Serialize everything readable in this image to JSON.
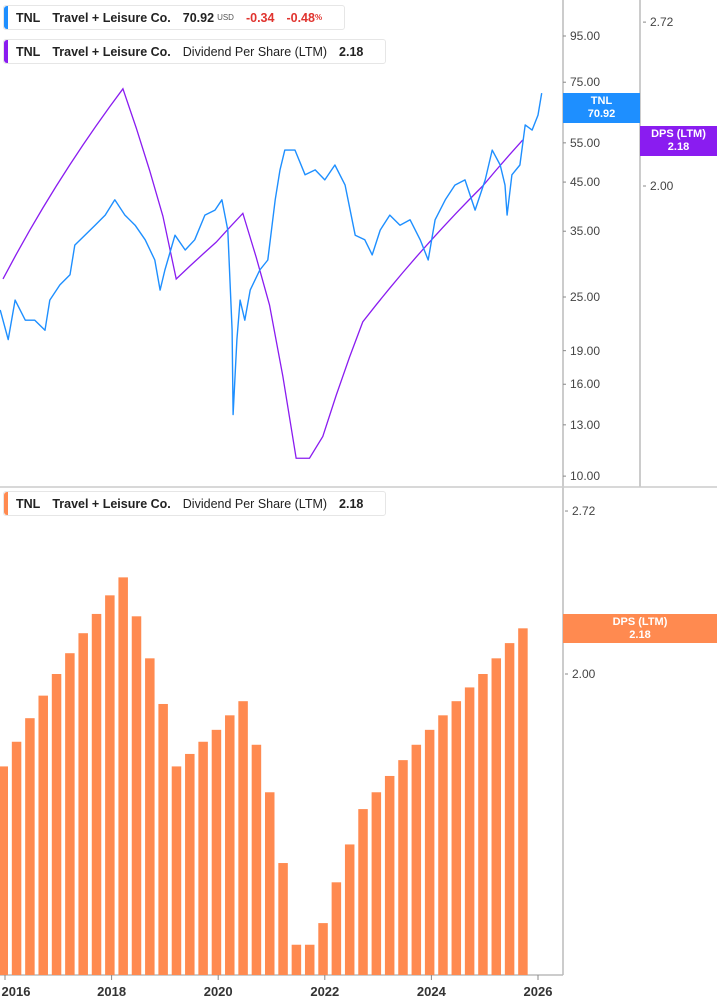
{
  "legend_price": {
    "ticker": "TNL",
    "company": "Travel + Leisure Co.",
    "price": "70.92",
    "currency": "USD",
    "change": "-0.34",
    "change_pct": "-0.48",
    "pct_sign": "%",
    "color": "#1e8fff"
  },
  "legend_dps_top": {
    "ticker": "TNL",
    "company": "Travel + Leisure Co.",
    "metric": "Dividend Per Share (LTM)",
    "value": "2.18",
    "color": "#8a1cf0"
  },
  "legend_dps_bottom": {
    "ticker": "TNL",
    "company": "Travel + Leisure Co.",
    "metric": "Dividend Per Share (LTM)",
    "value": "2.18",
    "color": "#ff8a50"
  },
  "tags": {
    "price": {
      "label": "TNL",
      "value": "70.92",
      "color": "#1e8fff"
    },
    "dps_top": {
      "label": "DPS (LTM)",
      "value": "2.18",
      "color": "#8a1cf0"
    },
    "dps_bottom": {
      "label": "DPS (LTM)",
      "value": "2.18",
      "color": "#ff8a50"
    }
  },
  "chart_data": [
    {
      "type": "line",
      "panel": "top",
      "scale": "log",
      "price_axis_ticks": [
        "95.00",
        "75.00",
        "55.00",
        "45.00",
        "35.00",
        "25.00",
        "19.00",
        "16.00",
        "13.00",
        "10.00"
      ],
      "dps_axis_ticks": [
        "2.72",
        "2.00"
      ],
      "series": [
        {
          "name": "TNL",
          "axis": "price",
          "color": "#1e8fff",
          "points": [
            [
              2015.91,
              23.4
            ],
            [
              2016.06,
              20.1
            ],
            [
              2016.19,
              24.6
            ],
            [
              2016.38,
              22.2
            ],
            [
              2016.56,
              22.2
            ],
            [
              2016.75,
              21.1
            ],
            [
              2016.84,
              24.6
            ],
            [
              2017.03,
              26.6
            ],
            [
              2017.22,
              28.0
            ],
            [
              2017.31,
              32.6
            ],
            [
              2017.5,
              34.3
            ],
            [
              2017.69,
              36.1
            ],
            [
              2017.88,
              38.0
            ],
            [
              2018.06,
              41.1
            ],
            [
              2018.25,
              38.0
            ],
            [
              2018.44,
              36.1
            ],
            [
              2018.63,
              33.5
            ],
            [
              2018.81,
              30.2
            ],
            [
              2018.91,
              25.9
            ],
            [
              2019.0,
              28.7
            ],
            [
              2019.19,
              34.3
            ],
            [
              2019.38,
              31.8
            ],
            [
              2019.56,
              33.5
            ],
            [
              2019.75,
              38.0
            ],
            [
              2019.94,
              39.0
            ],
            [
              2020.07,
              41.1
            ],
            [
              2020.18,
              35.2
            ],
            [
              2020.26,
              21.1
            ],
            [
              2020.28,
              13.7
            ],
            [
              2020.35,
              20.1
            ],
            [
              2020.41,
              24.6
            ],
            [
              2020.5,
              22.2
            ],
            [
              2020.6,
              25.9
            ],
            [
              2020.78,
              28.7
            ],
            [
              2020.93,
              30.2
            ],
            [
              2021.07,
              41.1
            ],
            [
              2021.16,
              47.9
            ],
            [
              2021.25,
              53.0
            ],
            [
              2021.44,
              53.0
            ],
            [
              2021.63,
              46.7
            ],
            [
              2021.82,
              47.9
            ],
            [
              2022.0,
              45.5
            ],
            [
              2022.19,
              49.1
            ],
            [
              2022.38,
              44.3
            ],
            [
              2022.57,
              34.3
            ],
            [
              2022.75,
              33.5
            ],
            [
              2022.89,
              31.0
            ],
            [
              2023.04,
              35.2
            ],
            [
              2023.22,
              38.0
            ],
            [
              2023.41,
              36.1
            ],
            [
              2023.6,
              37.1
            ],
            [
              2023.79,
              33.5
            ],
            [
              2023.94,
              30.2
            ],
            [
              2024.07,
              37.1
            ],
            [
              2024.26,
              41.1
            ],
            [
              2024.44,
              44.3
            ],
            [
              2024.63,
              45.5
            ],
            [
              2024.82,
              39.0
            ],
            [
              2025.01,
              45.5
            ],
            [
              2025.14,
              53.0
            ],
            [
              2025.29,
              49.1
            ],
            [
              2025.38,
              44.3
            ],
            [
              2025.42,
              38.0
            ],
            [
              2025.51,
              46.7
            ],
            [
              2025.66,
              49.1
            ],
            [
              2025.76,
              60.3
            ],
            [
              2025.89,
              58.7
            ],
            [
              2026.0,
              63.4
            ],
            [
              2026.07,
              70.92
            ]
          ]
        },
        {
          "name": "Dividend Per Share (LTM)",
          "axis": "dps",
          "color": "#8a1cf0",
          "source": "bars"
        }
      ]
    },
    {
      "type": "bar",
      "panel": "bottom",
      "scale": "log",
      "axis_ticks": [
        "2.72",
        "2.00"
      ],
      "x_tick_labels": [
        "2016",
        "2018",
        "2020",
        "2022",
        "2024",
        "2026"
      ],
      "color": "#ff8a50",
      "start_year": 2016,
      "frequency": "quarterly",
      "values": [
        1.68,
        1.76,
        1.84,
        1.92,
        2.0,
        2.08,
        2.16,
        2.24,
        2.32,
        2.4,
        2.23,
        2.06,
        1.89,
        1.68,
        1.72,
        1.76,
        1.8,
        1.85,
        1.9,
        1.75,
        1.6,
        1.4,
        1.2,
        1.2,
        1.25,
        1.35,
        1.45,
        1.55,
        1.6,
        1.65,
        1.7,
        1.75,
        1.8,
        1.85,
        1.9,
        1.95,
        2.0,
        2.06,
        2.12,
        2.18
      ]
    }
  ]
}
